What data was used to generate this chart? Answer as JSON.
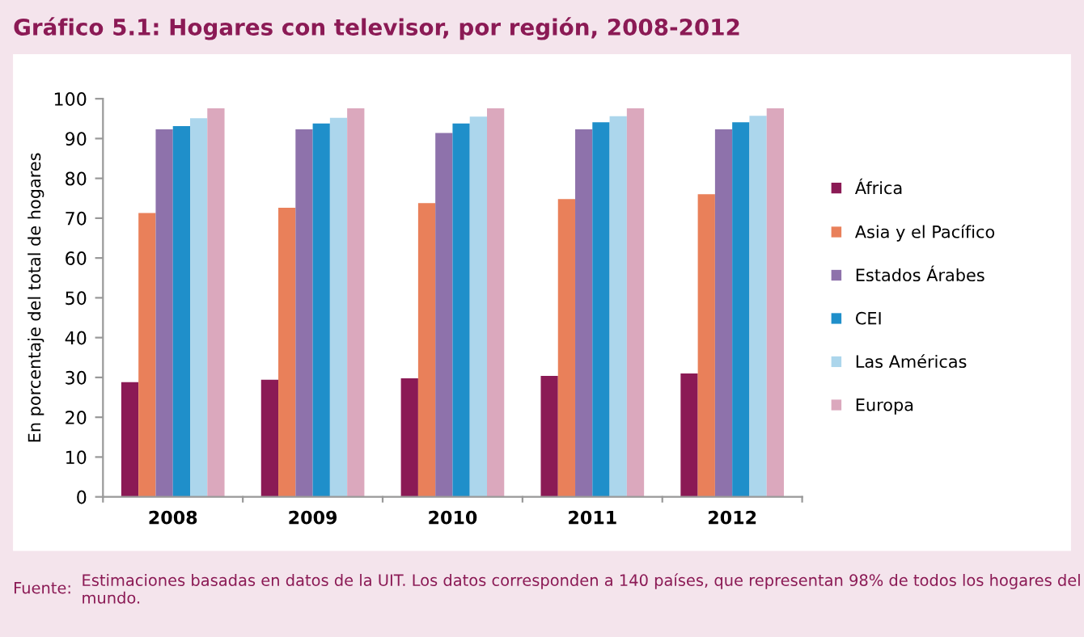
{
  "chart_data": {
    "type": "bar",
    "title": "Gráfico 5.1: Hogares con televisor, por región, 2008-2012",
    "ylabel": "En porcentaje del total de hogares",
    "categories": [
      "2008",
      "2009",
      "2010",
      "2011",
      "2012"
    ],
    "series": [
      {
        "name": "África",
        "color": "#8b1a55",
        "values": [
          28.8,
          29.4,
          29.8,
          30.4,
          31.0
        ]
      },
      {
        "name": "Asia y el Pacífico",
        "color": "#e9805a",
        "values": [
          71.3,
          72.6,
          73.8,
          74.8,
          76.0
        ]
      },
      {
        "name": "Estados Árabes",
        "color": "#8e72ab",
        "values": [
          92.3,
          92.3,
          91.4,
          92.3,
          92.3
        ]
      },
      {
        "name": "CEI",
        "color": "#1f8fca",
        "values": [
          93.1,
          93.8,
          93.8,
          94.1,
          94.1
        ]
      },
      {
        "name": "Las Américas",
        "color": "#acd6ec",
        "values": [
          95.1,
          95.2,
          95.5,
          95.6,
          95.7
        ]
      },
      {
        "name": "Europa",
        "color": "#dba8bd",
        "values": [
          97.6,
          97.6,
          97.6,
          97.6,
          97.6
        ]
      }
    ],
    "ylim": [
      0,
      100
    ],
    "yticks": [
      0,
      10,
      20,
      30,
      40,
      50,
      60,
      70,
      80,
      90,
      100
    ],
    "grid": false,
    "legend": "right",
    "annotations": [
      "Fuente:",
      "Estimaciones basadas en datos de la UIT. Los datos corresponden a 140 países, que representan 98% de todos los hogares del mundo."
    ]
  }
}
